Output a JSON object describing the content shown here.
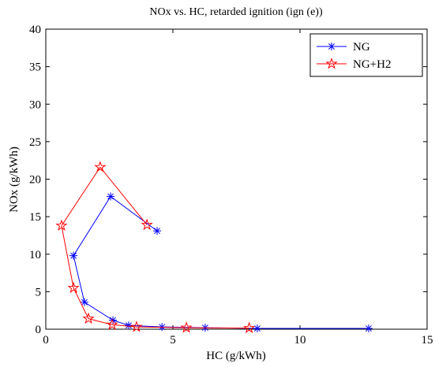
{
  "chart_data": {
    "type": "line",
    "title": "NOx vs. HC, retarded ignition (ign (e))",
    "x_label": "HC (g/kWh)",
    "y_label": "NOx (g/kWh)",
    "xlim": [
      0,
      15
    ],
    "xticks": [
      0,
      5,
      10,
      15
    ],
    "ylim": [
      0,
      40
    ],
    "yticks": [
      0,
      5,
      10,
      15,
      20,
      25,
      30,
      35,
      40
    ],
    "legend": "top-right",
    "series": [
      {
        "name": "NG",
        "color": "#0000ff",
        "marker": "asterisk",
        "x": [
          4.38,
          2.55,
          1.09,
          1.52,
          2.64,
          3.26,
          4.57,
          6.27,
          8.32,
          12.7
        ],
        "values": [
          13.1,
          17.7,
          9.8,
          3.6,
          1.2,
          0.5,
          0.3,
          0.2,
          0.1,
          0.1
        ]
      },
      {
        "name": "NG+H2",
        "color": "#ff0000",
        "marker": "star",
        "x": [
          3.98,
          2.14,
          0.62,
          1.09,
          1.68,
          2.61,
          3.57,
          5.53,
          8.0
        ],
        "values": [
          13.9,
          21.6,
          13.8,
          5.5,
          1.4,
          0.6,
          0.3,
          0.2,
          0.15
        ]
      }
    ]
  }
}
